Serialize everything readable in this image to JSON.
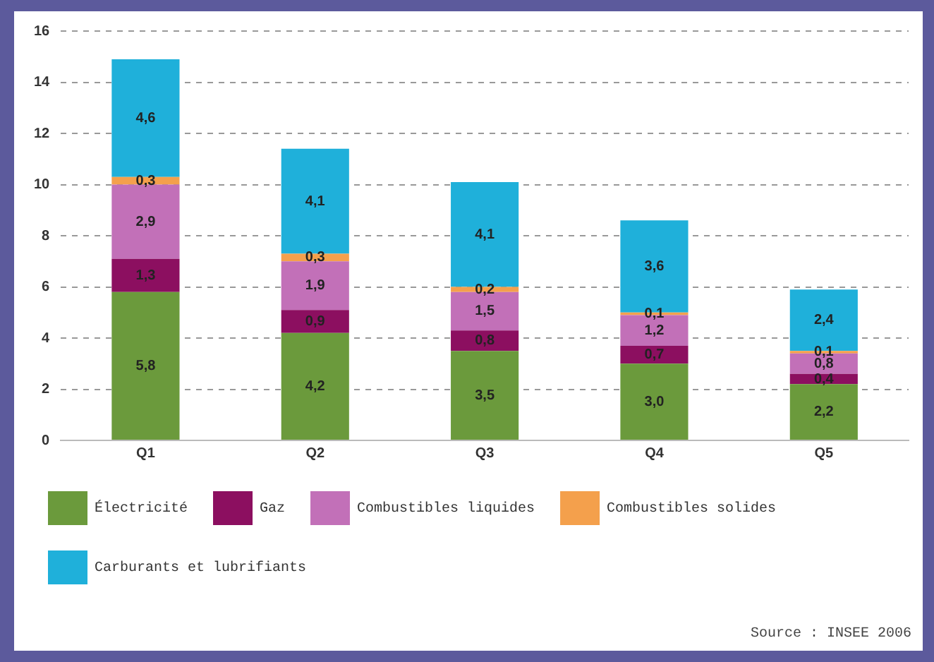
{
  "chart_data": {
    "type": "bar",
    "stacked": true,
    "categories": [
      "Q1",
      "Q2",
      "Q3",
      "Q4",
      "Q5"
    ],
    "series": [
      {
        "name": "Électricité",
        "color": "#6b9a3c",
        "values": [
          5.8,
          4.2,
          3.5,
          3.0,
          2.2
        ],
        "value_labels": [
          "5,8",
          "4,2",
          "3,5",
          "3,0",
          "2,2"
        ]
      },
      {
        "name": "Gaz",
        "color": "#8c0f60",
        "values": [
          1.3,
          0.9,
          0.8,
          0.7,
          0.4
        ],
        "value_labels": [
          "1,3",
          "0,9",
          "0,8",
          "0,7",
          "0,4"
        ]
      },
      {
        "name": "Combustibles liquides",
        "color": "#c270b8",
        "values": [
          2.9,
          1.9,
          1.5,
          1.2,
          0.8
        ],
        "value_labels": [
          "2,9",
          "1,9",
          "1,5",
          "1,2",
          "0,8"
        ]
      },
      {
        "name": "Combustibles solides",
        "color": "#f4a04c",
        "values": [
          0.3,
          0.3,
          0.2,
          0.1,
          0.1
        ],
        "value_labels": [
          "0,3",
          "0,3",
          "0,2",
          "0,1",
          "0,1"
        ]
      },
      {
        "name": "Carburants et lubrifiants",
        "color": "#1fb0da",
        "values": [
          4.6,
          4.1,
          4.1,
          3.6,
          2.4
        ],
        "value_labels": [
          "4,6",
          "4,1",
          "4,1",
          "3,6",
          "2,4"
        ]
      }
    ],
    "ylim": [
      0,
      16
    ],
    "yticks": [
      0,
      2,
      4,
      6,
      8,
      10,
      12,
      14,
      16
    ],
    "grid": "y",
    "legend": "bottom",
    "annotations": [
      "Source : INSEE 2006"
    ]
  }
}
